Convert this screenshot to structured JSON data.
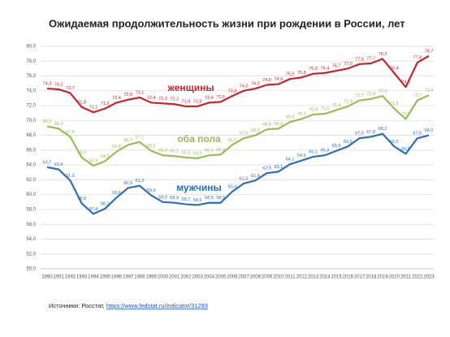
{
  "chart_data": {
    "type": "line",
    "title": "Ожидаемая продолжительность жизни при рождении в России, лет",
    "categories": [
      "1990",
      "1991",
      "1992",
      "1993",
      "1994",
      "1995",
      "1996",
      "1997",
      "1998",
      "1999",
      "2000",
      "2001",
      "2002",
      "2003",
      "2004",
      "2005",
      "2006",
      "2007",
      "2008",
      "2009",
      "2010",
      "2011",
      "2012",
      "2013",
      "2014",
      "2015",
      "2016",
      "2017",
      "2018",
      "2019",
      "2020",
      "2021",
      "2022",
      "2023"
    ],
    "series": [
      {
        "name": "женщины",
        "color": "#c0282d",
        "values": [
          74.3,
          74.2,
          73.7,
          71.8,
          71.1,
          71.6,
          72.4,
          72.8,
          73.1,
          72.4,
          72.3,
          72.2,
          71.9,
          71.9,
          72.4,
          72.5,
          73.3,
          74.0,
          74.3,
          74.8,
          74.9,
          75.6,
          75.8,
          76.3,
          76.4,
          76.7,
          77.0,
          77.6,
          77.7,
          78.3,
          76.4,
          74.5,
          77.8,
          78.7
        ],
        "value_labels": [
          "74,3",
          "74,2",
          "73,7",
          "71,8",
          "71,1",
          "71,6",
          "72,4",
          "72,8",
          "73,1",
          "72,4",
          "72,3",
          "72,2",
          "71,9",
          "71,9",
          "72,4",
          "72,5",
          "73,3",
          "74,0",
          "74,3",
          "74,8",
          "74,9",
          "75,6",
          "75,8",
          "76,3",
          "76,4",
          "76,7",
          "77,0",
          "77,6",
          "77,7",
          "78,3",
          "76,4",
          "74,5",
          "77,8",
          "78,7"
        ]
      },
      {
        "name": "оба пола",
        "color": "#9bbb59",
        "values": [
          69.2,
          68.9,
          67.8,
          65.0,
          63.9,
          64.5,
          65.8,
          66.7,
          67.1,
          65.9,
          65.3,
          65.2,
          65.0,
          64.9,
          65.3,
          65.4,
          66.7,
          67.6,
          68.0,
          68.8,
          68.9,
          69.8,
          70.2,
          70.8,
          70.9,
          71.4,
          71.9,
          72.7,
          72.9,
          73.3,
          71.6,
          70.2,
          72.7,
          73.4
        ],
        "value_labels": [
          "69,2",
          "68,9",
          "67,8",
          "65,0",
          "63,9",
          "64,5",
          "65,8",
          "66,7",
          "67,1",
          "65,9",
          "65,3",
          "65,2",
          "65,0",
          "64,9",
          "65,3",
          "65,4",
          "66,7",
          "67,6",
          "68,0",
          "68,8",
          "68,9",
          "69,8",
          "70,2",
          "70,8",
          "70,9",
          "71,4",
          "71,9",
          "72,7",
          "72,9",
          "73,3",
          "71,6",
          "70,2",
          "72,7",
          "73,4"
        ]
      },
      {
        "name": "мужчины",
        "color": "#2f6eb5",
        "values": [
          63.7,
          63.4,
          61.9,
          58.8,
          57.4,
          58.1,
          59.6,
          60.9,
          61.2,
          59.9,
          59.0,
          58.9,
          58.7,
          58.6,
          58.9,
          58.9,
          60.4,
          61.5,
          61.9,
          62.9,
          63.1,
          64.1,
          64.6,
          65.1,
          65.3,
          65.9,
          66.5,
          67.6,
          67.8,
          68.2,
          66.5,
          65.5,
          67.6,
          68.0
        ],
        "value_labels": [
          "63,7",
          "63,4",
          "61,9",
          "58,8",
          "57,4",
          "58,1",
          "59,6",
          "60,9",
          "61,2",
          "59,9",
          "59,0",
          "58,9",
          "58,7",
          "58,6",
          "58,9",
          "58,9",
          "60,4",
          "61,5",
          "61,9",
          "62,9",
          "63,1",
          "64,1",
          "64,6",
          "65,1",
          "65,3",
          "65,9",
          "66,5",
          "67,6",
          "67,8",
          "68,2",
          "66,5",
          "65,5",
          "67,6",
          "68,0"
        ]
      }
    ],
    "ylim": [
      50,
      80
    ],
    "yticks": [
      {
        "value": 50,
        "label": "50,0"
      },
      {
        "value": 52,
        "label": "52,0"
      },
      {
        "value": 54,
        "label": "54,0"
      },
      {
        "value": 56,
        "label": "56,0"
      },
      {
        "value": 58,
        "label": "58,0"
      },
      {
        "value": 60,
        "label": "60,0"
      },
      {
        "value": 62,
        "label": "62,0"
      },
      {
        "value": 64,
        "label": "64,0"
      },
      {
        "value": 66,
        "label": "66,0"
      },
      {
        "value": 68,
        "label": "68,0"
      },
      {
        "value": 70,
        "label": "70,0"
      },
      {
        "value": 72,
        "label": "72,0"
      },
      {
        "value": 74,
        "label": "74,0"
      },
      {
        "value": 76,
        "label": "76,0"
      },
      {
        "value": 78,
        "label": "78,0"
      },
      {
        "value": 80,
        "label": "80,0"
      }
    ],
    "grid": true,
    "source_prefix": "Источники: Росстат, ",
    "source_link": "https://www.fedstat.ru/indicator/31293"
  }
}
